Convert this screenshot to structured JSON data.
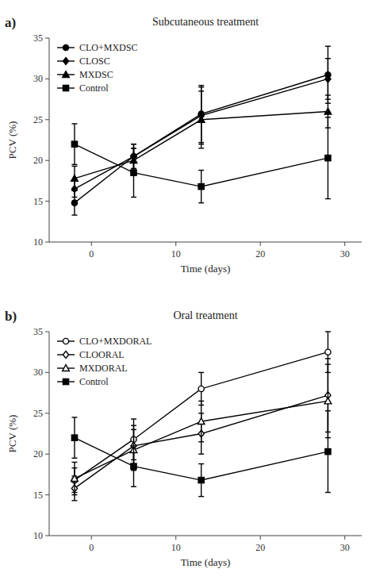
{
  "chart_data": [
    {
      "type": "line",
      "title": "Subcutaneous treatment",
      "annotations": [
        "a)"
      ],
      "x_label": "Time (days)",
      "y_label": "PCV (%)",
      "color": "black",
      "x": [
        -2,
        5,
        13,
        28
      ],
      "series": [
        {
          "name": "CLO+MXDSC",
          "marker": "circle",
          "values": [
            14.8,
            20.5,
            25.7,
            30.5
          ],
          "errors": [
            1.5,
            1.5,
            3.5,
            3.5
          ]
        },
        {
          "name": "CLOSC",
          "marker": "diamond",
          "values": [
            16.5,
            20.5,
            25.5,
            30.0
          ],
          "errors": [
            1.0,
            1.5,
            3.5,
            2.5
          ]
        },
        {
          "name": "MXDSC",
          "marker": "triangle",
          "values": [
            17.8,
            20.0,
            25.0,
            26.0
          ],
          "errors": [
            1.5,
            1.5,
            3.5,
            2.0
          ]
        },
        {
          "name": "Control",
          "marker": "square",
          "values": [
            22.0,
            18.5,
            16.8,
            20.3
          ],
          "errors": [
            2.5,
            3.0,
            2.0,
            5.0
          ]
        }
      ],
      "xlim": [
        -5,
        32
      ],
      "xticks": [
        0,
        10,
        20,
        30
      ],
      "ylim": [
        10,
        35
      ],
      "yticks": [
        10,
        15,
        20,
        25,
        30,
        35
      ],
      "grid": false,
      "legend": "upper left"
    },
    {
      "type": "line",
      "title": "Oral treatment",
      "annotations": [
        "b)"
      ],
      "x_label": "Time (days)",
      "y_label": "PCV (%)",
      "color": "black",
      "x": [
        -2,
        5,
        13,
        28
      ],
      "series": [
        {
          "name": "CLO+MXDORAL",
          "marker": "circle-open",
          "values": [
            16.8,
            21.8,
            28.0,
            32.5
          ],
          "errors": [
            1.5,
            2.5,
            2.0,
            2.5
          ]
        },
        {
          "name": "CLOORAL",
          "marker": "diamond-open",
          "values": [
            15.8,
            21.0,
            22.5,
            27.2
          ],
          "errors": [
            1.5,
            2.5,
            2.5,
            4.5
          ]
        },
        {
          "name": "MXDORAL",
          "marker": "triangle-open",
          "values": [
            17.0,
            20.5,
            24.0,
            26.5
          ],
          "errors": [
            2.0,
            2.5,
            2.5,
            4.5
          ]
        },
        {
          "name": "Control",
          "marker": "square",
          "values": [
            22.0,
            18.5,
            16.8,
            20.3
          ],
          "errors": [
            2.5,
            2.5,
            2.0,
            5.0
          ]
        }
      ],
      "xlim": [
        -5,
        32
      ],
      "xticks": [
        0,
        10,
        20,
        30
      ],
      "ylim": [
        10,
        35
      ],
      "yticks": [
        10,
        15,
        20,
        25,
        30,
        35
      ],
      "grid": false,
      "legend": "upper left"
    }
  ]
}
